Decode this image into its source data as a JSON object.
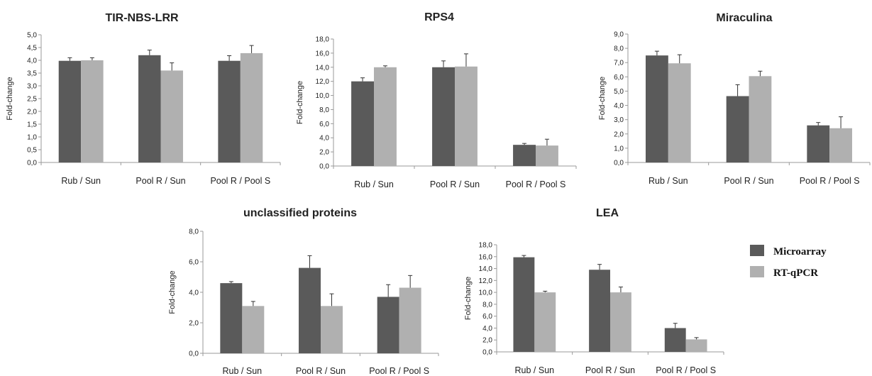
{
  "chart_data": [
    {
      "type": "bar",
      "title": "TIR-NBS-LRR",
      "ylabel": "Fold-change",
      "categories": [
        "Rub / Sun",
        "Pool R / Sun",
        "Pool R / Pool S"
      ],
      "ylim": [
        0,
        5
      ],
      "yticks": [
        "0,0",
        "0,5",
        "1,0",
        "1,5",
        "2,0",
        "2,5",
        "3,0",
        "3,5",
        "4,0",
        "4,5",
        "5,0"
      ],
      "series": [
        {
          "name": "Microarray",
          "values": [
            3.98,
            4.2,
            3.98
          ],
          "errors": [
            0.12,
            0.2,
            0.2
          ]
        },
        {
          "name": "RT-qPCR",
          "values": [
            4.0,
            3.6,
            4.28
          ],
          "errors": [
            0.1,
            0.3,
            0.3
          ]
        }
      ]
    },
    {
      "type": "bar",
      "title": "RPS4",
      "ylabel": "Fold-change",
      "categories": [
        "Rub / Sun",
        "Pool R / Sun",
        "Pool R / Pool S"
      ],
      "ylim": [
        0,
        18
      ],
      "yticks": [
        "0,0",
        "2,0",
        "4,0",
        "6,0",
        "8,0",
        "10,0",
        "12,0",
        "14,0",
        "16,0",
        "18,0"
      ],
      "series": [
        {
          "name": "Microarray",
          "values": [
            12.0,
            14.0,
            3.0
          ],
          "errors": [
            0.5,
            0.9,
            0.2
          ]
        },
        {
          "name": "RT-qPCR",
          "values": [
            14.0,
            14.1,
            2.9
          ],
          "errors": [
            0.2,
            1.8,
            0.9
          ]
        }
      ]
    },
    {
      "type": "bar",
      "title": "Miraculina",
      "ylabel": "Fold-change",
      "categories": [
        "Rub / Sun",
        "Pool R / Sun",
        "Pool R / Pool S"
      ],
      "ylim": [
        0,
        9
      ],
      "yticks": [
        "0,0",
        "1,0",
        "2,0",
        "3,0",
        "4,0",
        "5,0",
        "6,0",
        "7,0",
        "8,0",
        "9,0"
      ],
      "series": [
        {
          "name": "Microarray",
          "values": [
            7.5,
            4.65,
            2.6
          ],
          "errors": [
            0.3,
            0.8,
            0.2
          ]
        },
        {
          "name": "RT-qPCR",
          "values": [
            6.95,
            6.05,
            2.4
          ],
          "errors": [
            0.6,
            0.35,
            0.8
          ]
        }
      ]
    },
    {
      "type": "bar",
      "title": "unclassified proteins",
      "ylabel": "Fold-change",
      "categories": [
        "Rub / Sun",
        "Pool R / Sun",
        "Pool R / Pool S"
      ],
      "ylim": [
        0,
        8
      ],
      "yticks": [
        "0,0",
        "2,0",
        "4,0",
        "6,0",
        "8,0"
      ],
      "series": [
        {
          "name": "Microarray",
          "values": [
            4.6,
            5.6,
            3.7
          ],
          "errors": [
            0.1,
            0.8,
            0.8
          ]
        },
        {
          "name": "RT-qPCR",
          "values": [
            3.1,
            3.1,
            4.3
          ],
          "errors": [
            0.3,
            0.8,
            0.8
          ]
        }
      ]
    },
    {
      "type": "bar",
      "title": "LEA",
      "ylabel": "Fold-change",
      "categories": [
        "Rub / Sun",
        "Pool R / Sun",
        "Pool R / Pool S"
      ],
      "ylim": [
        0,
        18
      ],
      "yticks": [
        "0,0",
        "2,0",
        "4,0",
        "6,0",
        "8,0",
        "10,0",
        "12,0",
        "14,0",
        "16,0",
        "18,0"
      ],
      "series": [
        {
          "name": "Microarray",
          "values": [
            15.9,
            13.8,
            4.0
          ],
          "errors": [
            0.3,
            0.9,
            0.8
          ]
        },
        {
          "name": "RT-qPCR",
          "values": [
            10.0,
            10.0,
            2.1
          ],
          "errors": [
            0.2,
            0.9,
            0.3
          ]
        }
      ]
    }
  ],
  "legend": {
    "items": [
      {
        "label": "Microarray",
        "color": "#5a5a5a"
      },
      {
        "label": "RT-qPCR",
        "color": "#b0b0b0"
      }
    ]
  },
  "colors": {
    "microarray": "#5a5a5a",
    "rtqpcr": "#b0b0b0",
    "axis": "#9a9a9a",
    "error_bar": "#333333"
  }
}
